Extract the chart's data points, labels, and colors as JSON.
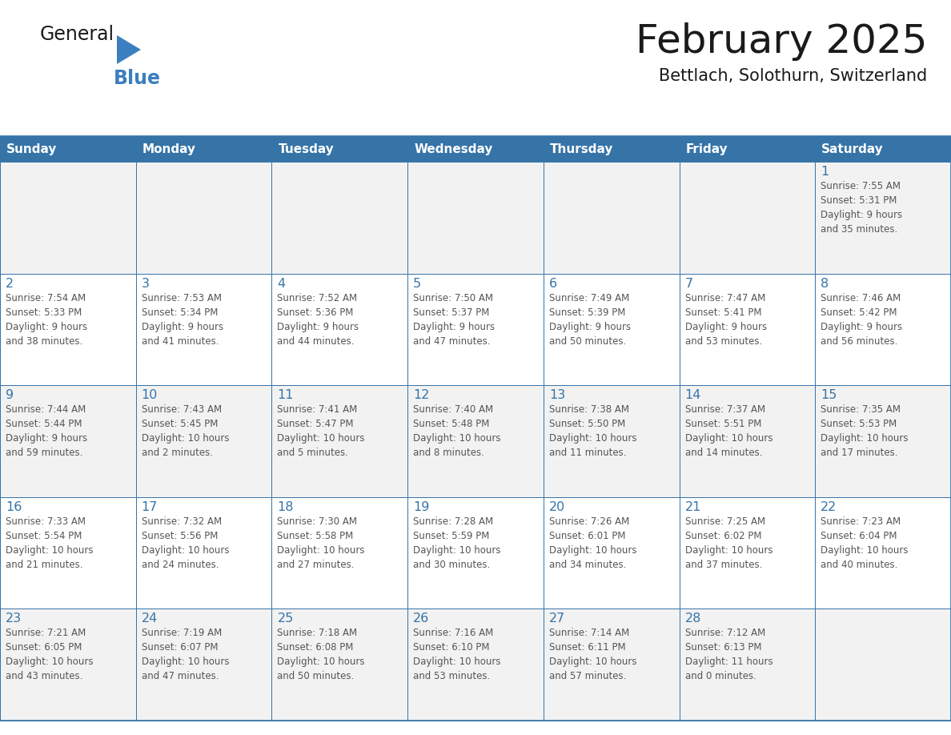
{
  "title": "February 2025",
  "subtitle": "Bettlach, Solothurn, Switzerland",
  "days_of_week": [
    "Sunday",
    "Monday",
    "Tuesday",
    "Wednesday",
    "Thursday",
    "Friday",
    "Saturday"
  ],
  "header_bg_color": "#3674a8",
  "header_text_color": "#ffffff",
  "cell_bg_white": "#ffffff",
  "cell_bg_gray": "#f2f2f2",
  "cell_border_color": "#3674a8",
  "day_num_color": "#3674a8",
  "info_text_color": "#555555",
  "title_color": "#1a1a1a",
  "subtitle_color": "#1a1a1a",
  "logo_general_color": "#1a1a1a",
  "logo_blue_color": "#3c7fc0",
  "logo_triangle_color": "#3c7fc0",
  "weeks": [
    [
      {
        "day": null,
        "info": ""
      },
      {
        "day": null,
        "info": ""
      },
      {
        "day": null,
        "info": ""
      },
      {
        "day": null,
        "info": ""
      },
      {
        "day": null,
        "info": ""
      },
      {
        "day": null,
        "info": ""
      },
      {
        "day": 1,
        "info": "Sunrise: 7:55 AM\nSunset: 5:31 PM\nDaylight: 9 hours\nand 35 minutes."
      }
    ],
    [
      {
        "day": 2,
        "info": "Sunrise: 7:54 AM\nSunset: 5:33 PM\nDaylight: 9 hours\nand 38 minutes."
      },
      {
        "day": 3,
        "info": "Sunrise: 7:53 AM\nSunset: 5:34 PM\nDaylight: 9 hours\nand 41 minutes."
      },
      {
        "day": 4,
        "info": "Sunrise: 7:52 AM\nSunset: 5:36 PM\nDaylight: 9 hours\nand 44 minutes."
      },
      {
        "day": 5,
        "info": "Sunrise: 7:50 AM\nSunset: 5:37 PM\nDaylight: 9 hours\nand 47 minutes."
      },
      {
        "day": 6,
        "info": "Sunrise: 7:49 AM\nSunset: 5:39 PM\nDaylight: 9 hours\nand 50 minutes."
      },
      {
        "day": 7,
        "info": "Sunrise: 7:47 AM\nSunset: 5:41 PM\nDaylight: 9 hours\nand 53 minutes."
      },
      {
        "day": 8,
        "info": "Sunrise: 7:46 AM\nSunset: 5:42 PM\nDaylight: 9 hours\nand 56 minutes."
      }
    ],
    [
      {
        "day": 9,
        "info": "Sunrise: 7:44 AM\nSunset: 5:44 PM\nDaylight: 9 hours\nand 59 minutes."
      },
      {
        "day": 10,
        "info": "Sunrise: 7:43 AM\nSunset: 5:45 PM\nDaylight: 10 hours\nand 2 minutes."
      },
      {
        "day": 11,
        "info": "Sunrise: 7:41 AM\nSunset: 5:47 PM\nDaylight: 10 hours\nand 5 minutes."
      },
      {
        "day": 12,
        "info": "Sunrise: 7:40 AM\nSunset: 5:48 PM\nDaylight: 10 hours\nand 8 minutes."
      },
      {
        "day": 13,
        "info": "Sunrise: 7:38 AM\nSunset: 5:50 PM\nDaylight: 10 hours\nand 11 minutes."
      },
      {
        "day": 14,
        "info": "Sunrise: 7:37 AM\nSunset: 5:51 PM\nDaylight: 10 hours\nand 14 minutes."
      },
      {
        "day": 15,
        "info": "Sunrise: 7:35 AM\nSunset: 5:53 PM\nDaylight: 10 hours\nand 17 minutes."
      }
    ],
    [
      {
        "day": 16,
        "info": "Sunrise: 7:33 AM\nSunset: 5:54 PM\nDaylight: 10 hours\nand 21 minutes."
      },
      {
        "day": 17,
        "info": "Sunrise: 7:32 AM\nSunset: 5:56 PM\nDaylight: 10 hours\nand 24 minutes."
      },
      {
        "day": 18,
        "info": "Sunrise: 7:30 AM\nSunset: 5:58 PM\nDaylight: 10 hours\nand 27 minutes."
      },
      {
        "day": 19,
        "info": "Sunrise: 7:28 AM\nSunset: 5:59 PM\nDaylight: 10 hours\nand 30 minutes."
      },
      {
        "day": 20,
        "info": "Sunrise: 7:26 AM\nSunset: 6:01 PM\nDaylight: 10 hours\nand 34 minutes."
      },
      {
        "day": 21,
        "info": "Sunrise: 7:25 AM\nSunset: 6:02 PM\nDaylight: 10 hours\nand 37 minutes."
      },
      {
        "day": 22,
        "info": "Sunrise: 7:23 AM\nSunset: 6:04 PM\nDaylight: 10 hours\nand 40 minutes."
      }
    ],
    [
      {
        "day": 23,
        "info": "Sunrise: 7:21 AM\nSunset: 6:05 PM\nDaylight: 10 hours\nand 43 minutes."
      },
      {
        "day": 24,
        "info": "Sunrise: 7:19 AM\nSunset: 6:07 PM\nDaylight: 10 hours\nand 47 minutes."
      },
      {
        "day": 25,
        "info": "Sunrise: 7:18 AM\nSunset: 6:08 PM\nDaylight: 10 hours\nand 50 minutes."
      },
      {
        "day": 26,
        "info": "Sunrise: 7:16 AM\nSunset: 6:10 PM\nDaylight: 10 hours\nand 53 minutes."
      },
      {
        "day": 27,
        "info": "Sunrise: 7:14 AM\nSunset: 6:11 PM\nDaylight: 10 hours\nand 57 minutes."
      },
      {
        "day": 28,
        "info": "Sunrise: 7:12 AM\nSunset: 6:13 PM\nDaylight: 11 hours\nand 0 minutes."
      },
      {
        "day": null,
        "info": ""
      }
    ]
  ],
  "row_bg_colors": [
    "#f2f2f2",
    "#ffffff",
    "#f2f2f2",
    "#ffffff",
    "#f2f2f2"
  ]
}
